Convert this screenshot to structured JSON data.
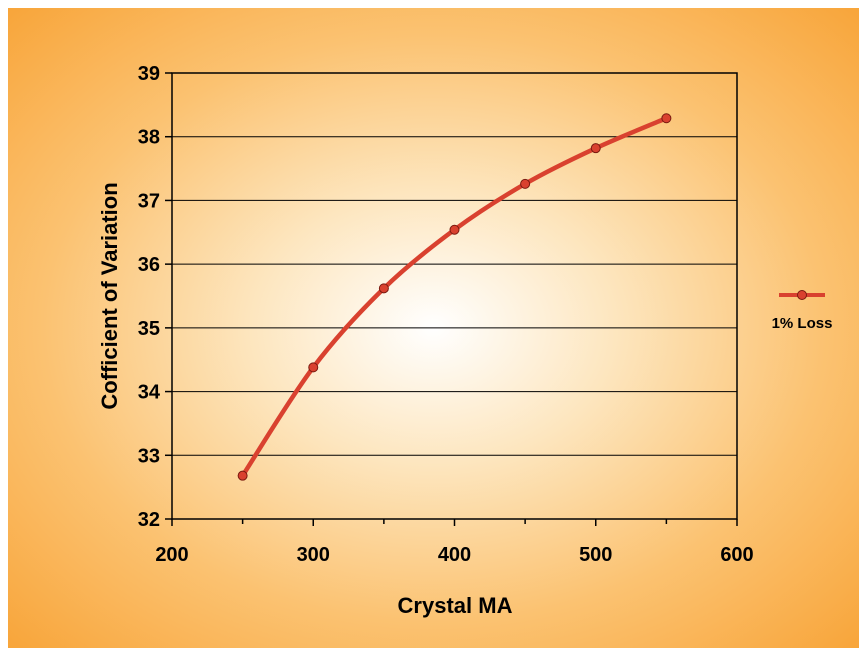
{
  "chart_data": {
    "type": "line",
    "xlabel": "Crystal MA",
    "ylabel": "Cofficient of Variation",
    "xlim": [
      200,
      600
    ],
    "ylim": [
      32,
      39
    ],
    "xticks": [
      200,
      300,
      400,
      500,
      600
    ],
    "yticks": [
      32,
      33,
      34,
      35,
      36,
      37,
      38,
      39
    ],
    "grid": "horizontal",
    "legend_position": "right",
    "series": [
      {
        "name": "1% Loss",
        "color": "#d9412f",
        "x": [
          250,
          300,
          350,
          400,
          450,
          500,
          550
        ],
        "y": [
          32.68,
          34.38,
          35.62,
          36.54,
          37.26,
          37.82,
          38.29
        ]
      }
    ]
  }
}
